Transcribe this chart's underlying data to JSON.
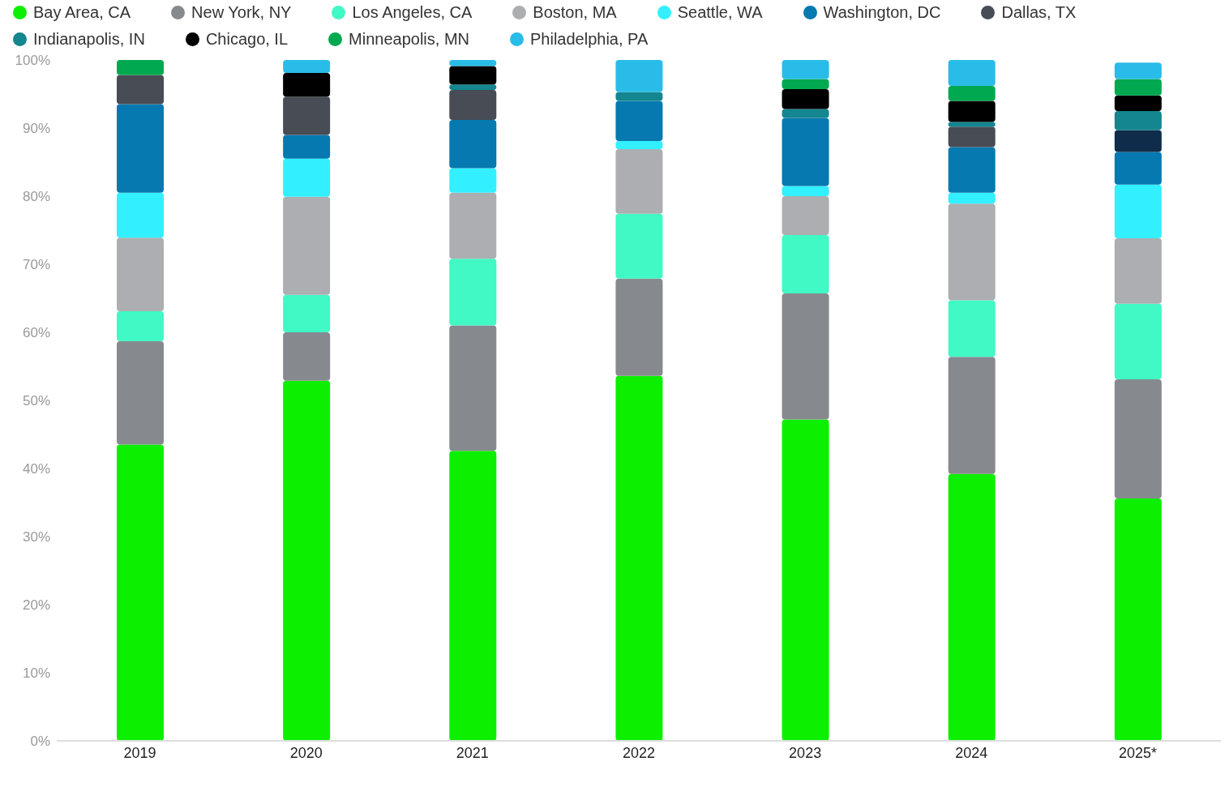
{
  "chart_data": {
    "type": "bar",
    "stacked": true,
    "legend": "top",
    "grid": false,
    "categories": [
      "2019",
      "2020",
      "2021",
      "2022",
      "2023",
      "2024",
      "2025*"
    ],
    "ylim": [
      0,
      100
    ],
    "yticks": [
      {
        "value": 0,
        "label": "0%"
      },
      {
        "value": 10,
        "label": "10%"
      },
      {
        "value": 20,
        "label": "20%"
      },
      {
        "value": 30,
        "label": "30%"
      },
      {
        "value": 40,
        "label": "40%"
      },
      {
        "value": 50,
        "label": "50%"
      },
      {
        "value": 60,
        "label": "60%"
      },
      {
        "value": 70,
        "label": "70%"
      },
      {
        "value": 80,
        "label": "80%"
      },
      {
        "value": 90,
        "label": "90%"
      },
      {
        "value": 100,
        "label": "100%"
      }
    ],
    "series": [
      {
        "name": "Bay Area, CA",
        "color": "#0cf000",
        "values": [
          43.5,
          52.9,
          42.6,
          53.6,
          47.2,
          39.2,
          35.6
        ]
      },
      {
        "name": "New York, NY",
        "color": "#868a8e",
        "values": [
          15.2,
          7.1,
          18.4,
          14.3,
          18.5,
          17.2,
          17.5
        ]
      },
      {
        "name": "Los Angeles, CA",
        "color": "#40f9c5",
        "values": [
          4.4,
          5.5,
          9.8,
          9.5,
          8.6,
          8.3,
          11.1
        ]
      },
      {
        "name": "Boston, MA",
        "color": "#acaeb1",
        "values": [
          10.8,
          14.4,
          9.7,
          9.5,
          5.7,
          14.2,
          9.6
        ]
      },
      {
        "name": "Seattle, WA",
        "color": "#32f0ff",
        "values": [
          6.6,
          5.6,
          3.6,
          1.2,
          1.5,
          1.6,
          7.9
        ]
      },
      {
        "name": "Washington, DC",
        "color": "#0579b0",
        "values": [
          13.0,
          3.5,
          7.1,
          5.9,
          10.0,
          6.7,
          4.8
        ]
      },
      {
        "name": "Dallas, TX",
        "color": "#474c55",
        "colors": [
          "#474c55",
          "#474c55",
          "#474c55",
          "#474c55",
          "#474c55",
          "#474c55",
          "#0f2d4a"
        ],
        "values": [
          4.3,
          5.6,
          4.4,
          null,
          null,
          3.0,
          3.2
        ]
      },
      {
        "name": "Indianapolis, IN",
        "color": "#13868f",
        "values": [
          null,
          null,
          0.8,
          1.3,
          1.3,
          0.7,
          2.8
        ]
      },
      {
        "name": "Chicago, IL",
        "color": "#000000",
        "values": [
          null,
          3.5,
          2.7,
          null,
          2.9,
          3.1,
          2.3
        ]
      },
      {
        "name": "Minneapolis, MN",
        "color": "#00a94f",
        "values": [
          2.2,
          null,
          null,
          null,
          1.5,
          2.2,
          2.4
        ]
      },
      {
        "name": "Philadelphia, PA",
        "color": "#29bce8",
        "values": [
          null,
          1.9,
          0.9,
          4.7,
          2.8,
          3.8,
          2.4
        ]
      }
    ]
  }
}
